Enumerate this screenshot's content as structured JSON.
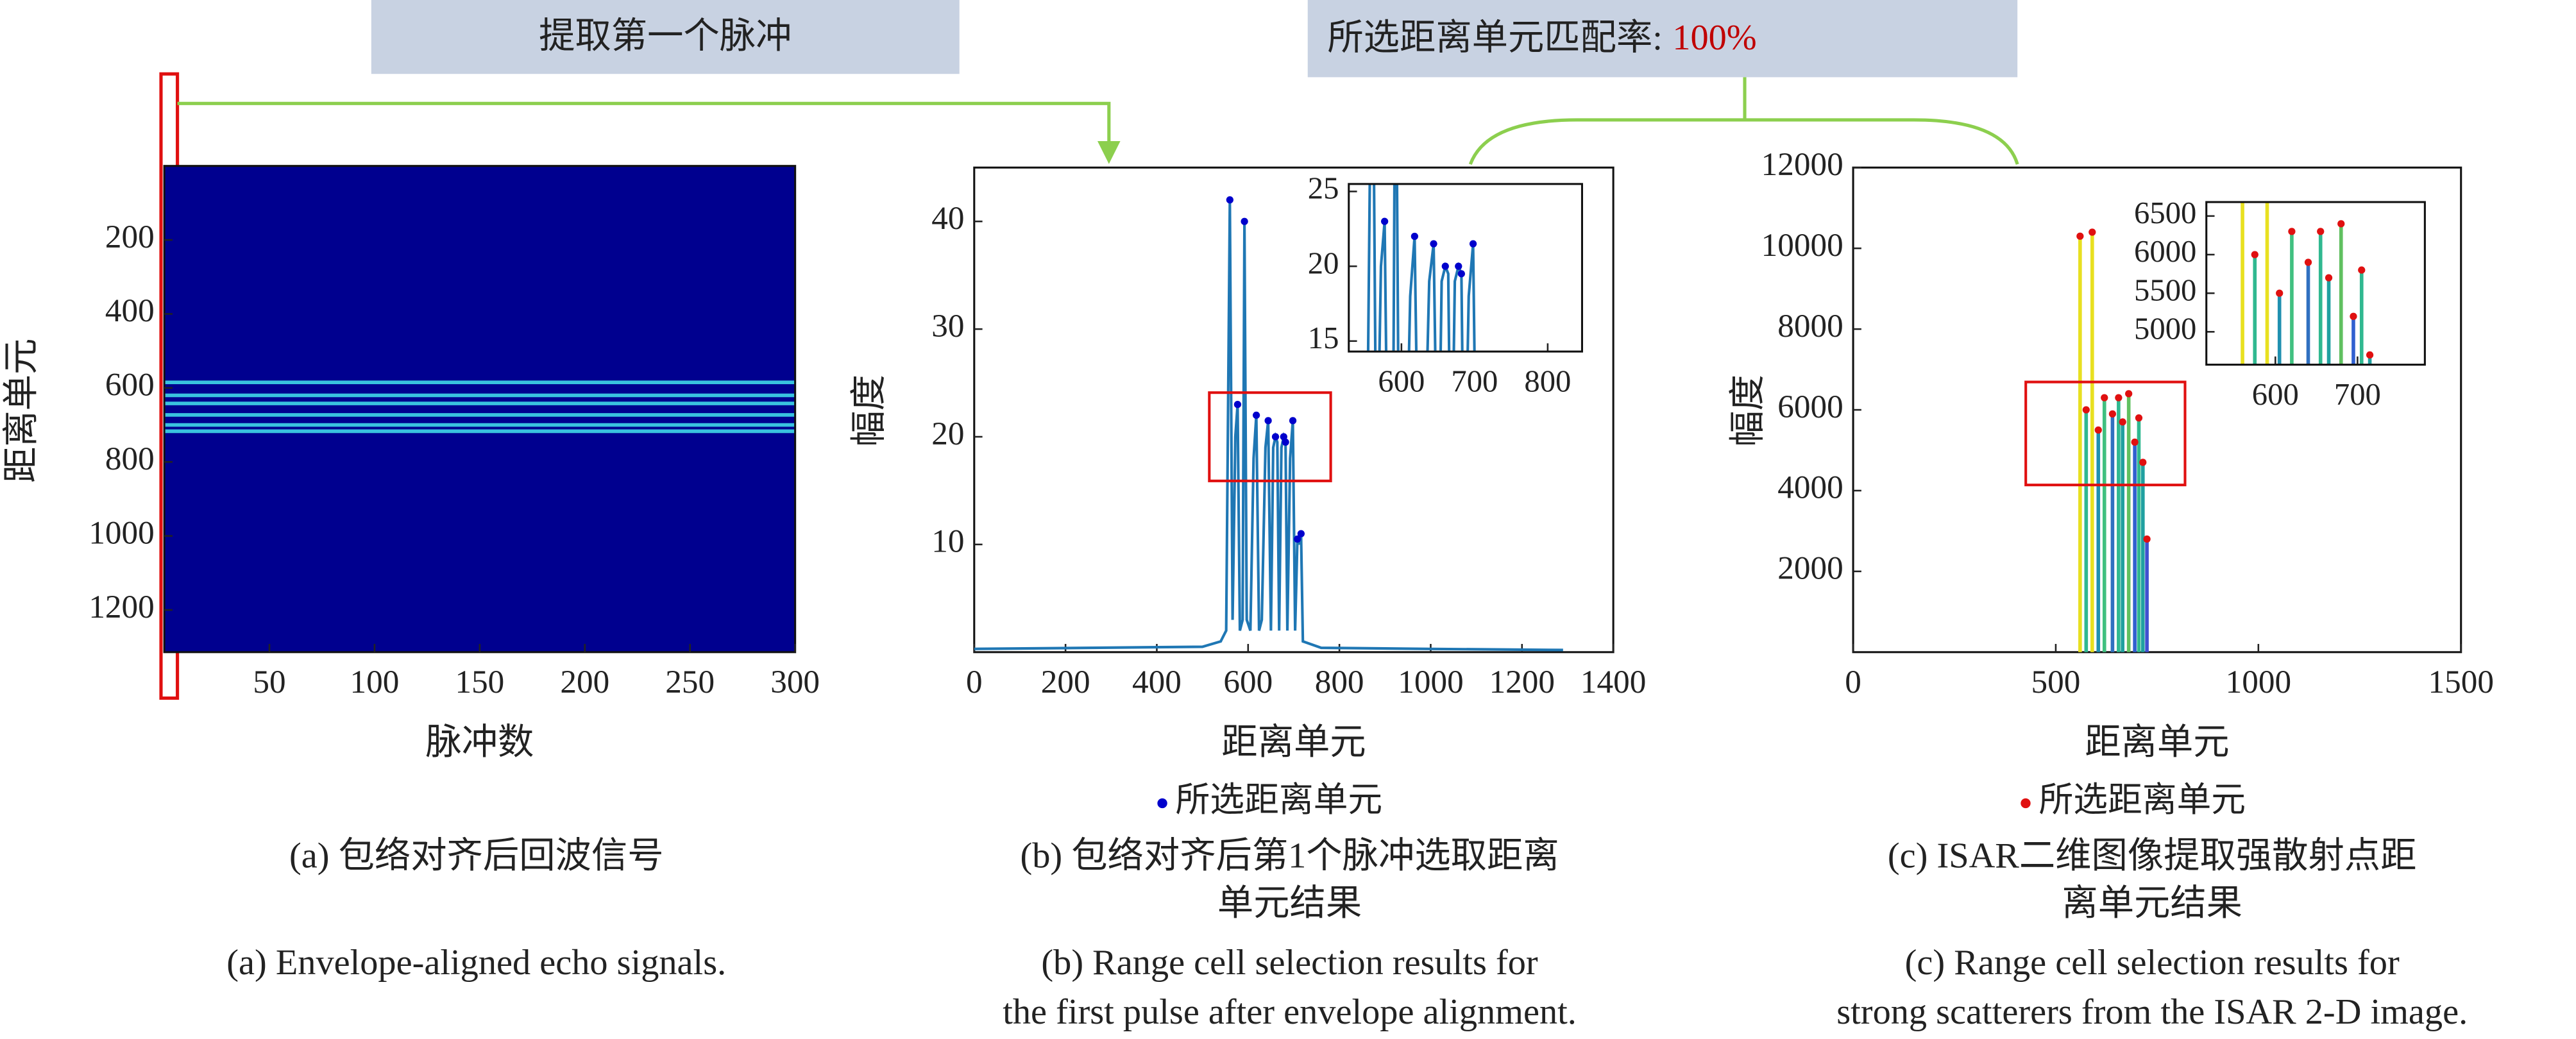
{
  "banners": {
    "extract": "提取第一个脉冲",
    "match_label": "所选距离单元匹配率:",
    "match_rate": "100%"
  },
  "chart_data": [
    {
      "type": "heatmap",
      "xlabel": "脉冲数",
      "ylabel": "距离单元",
      "xlim": [
        0,
        300
      ],
      "xticks": [
        50,
        100,
        150,
        200,
        250,
        300
      ],
      "ylim": [
        1314,
        0
      ],
      "yticks": [
        200,
        400,
        600,
        800,
        1000,
        1200
      ],
      "color": "#00008f",
      "row_color": "#40d8e8",
      "rows": [
        585,
        620,
        642,
        673,
        700,
        717
      ],
      "caption_cn": [
        "(a) 包络对齐后回波信号"
      ],
      "caption_en": [
        "(a) Envelope-aligned echo signals."
      ]
    },
    {
      "type": "line",
      "xlabel": "距离单元",
      "ylabel": "幅度",
      "xlim": [
        0,
        1400
      ],
      "xticks": [
        0,
        200,
        400,
        600,
        800,
        1000,
        1200,
        1400
      ],
      "ylim": [
        0,
        45
      ],
      "yticks": [
        10,
        20,
        30,
        40
      ],
      "series": [
        {
          "x": [
            0,
            500,
            540,
            552,
            560,
            566,
            572,
            577,
            582,
            588,
            592,
            597,
            605,
            612,
            618,
            624,
            630,
            638,
            644,
            650,
            655,
            660,
            664,
            668,
            673,
            678,
            682,
            686,
            692,
            698,
            703,
            708,
            712,
            716,
            720,
            760,
            1000,
            1290
          ],
          "values": [
            0.3,
            0.5,
            1,
            2,
            42,
            3,
            20,
            23,
            2,
            3,
            40,
            3,
            2,
            18,
            22,
            2,
            3,
            19,
            21.5,
            2,
            19,
            20,
            19.5,
            2,
            19,
            20,
            19.5,
            2,
            18,
            21.5,
            2,
            10.5,
            10,
            11,
            1,
            0.4,
            0.3,
            0.2
          ],
          "color": "#1f77b4"
        },
        {
          "name": "所选距离单元",
          "type": "scatter",
          "color": "#0000cc",
          "x": [
            560,
            577,
            592,
            618,
            644,
            660,
            678,
            682,
            698,
            708,
            716
          ],
          "values": [
            42,
            23,
            40,
            22,
            21.5,
            20,
            20,
            19.5,
            21.5,
            10.5,
            11
          ]
        }
      ],
      "inset": {
        "xlim": [
          528,
          847
        ],
        "xticks": [
          600,
          700,
          800
        ],
        "ylim": [
          14.3,
          25.5
        ],
        "yticks": [
          15,
          20,
          25
        ]
      },
      "zoom": {
        "xlim": [
          515,
          781
        ],
        "ylim": [
          15.9,
          24.1
        ]
      },
      "caption_cn": [
        "(b) 包络对齐后第1个脉冲选取距离",
        "单元结果"
      ],
      "caption_en": [
        "(b) Range cell selection results for",
        "the first pulse after envelope alignment."
      ]
    },
    {
      "type": "stem",
      "xlabel": "距离单元",
      "ylabel": "幅度",
      "xlim": [
        0,
        1500
      ],
      "xticks": [
        0,
        500,
        1000,
        1500
      ],
      "ylim": [
        0,
        12000
      ],
      "yticks": [
        2000,
        4000,
        6000,
        8000,
        10000,
        12000
      ],
      "series": [
        {
          "x": [
            560,
            575,
            590,
            605,
            620,
            640,
            655,
            665,
            680,
            695,
            705,
            715,
            725
          ],
          "values": [
            10300,
            6000,
            10400,
            5500,
            6300,
            5900,
            6300,
            5700,
            6400,
            5200,
            5800,
            4700,
            2800
          ],
          "colors": [
            "#e8e020",
            "#30b890",
            "#e8e020",
            "#2090b0",
            "#40c080",
            "#3070c0",
            "#30b890",
            "#20a0a0",
            "#60c060",
            "#3060d0",
            "#30b890",
            "#20a0a0",
            "#4050d0"
          ]
        },
        {
          "name": "所选距离单元",
          "type": "scatter",
          "color": "#e01010",
          "x": [
            560,
            575,
            590,
            605,
            620,
            640,
            655,
            665,
            680,
            695,
            705,
            715,
            725
          ],
          "values": [
            10300,
            6000,
            10400,
            5500,
            6300,
            5900,
            6300,
            5700,
            6400,
            5200,
            5800,
            4700,
            2800
          ]
        }
      ],
      "inset": {
        "xlim": [
          516,
          782
        ],
        "xticks": [
          600,
          700
        ],
        "ylim": [
          4574,
          6681
        ],
        "yticks": [
          5000,
          5500,
          6000,
          6500
        ]
      },
      "zoom": {
        "xlim": [
          426,
          819
        ],
        "ylim": [
          4140,
          6690
        ]
      },
      "caption_cn": [
        "(c) ISAR二维图像提取强散射点距",
        "离单元结果"
      ],
      "caption_en": [
        "(c) Range cell selection results for",
        "strong scatterers from the ISAR 2-D image."
      ]
    }
  ]
}
